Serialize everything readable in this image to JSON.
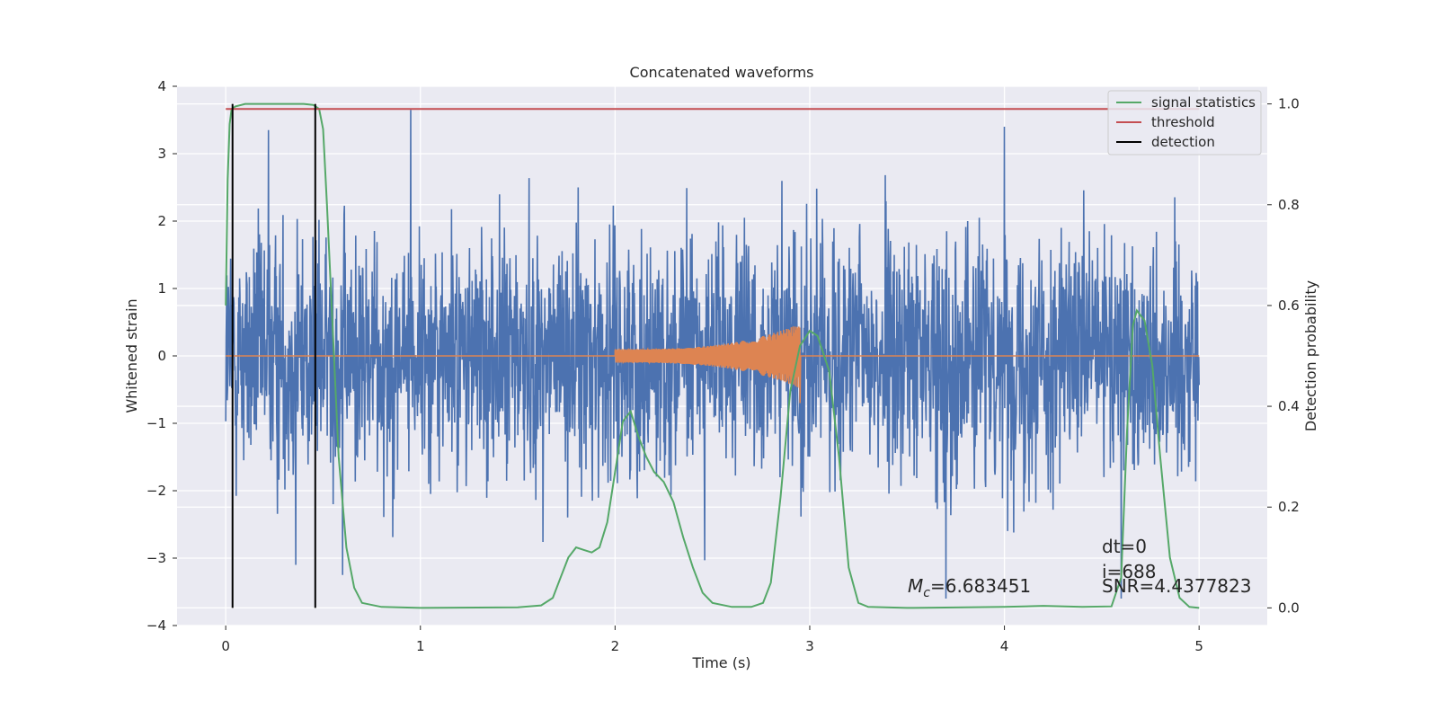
{
  "chart_data": {
    "type": "line",
    "title": "Concatenated waveforms",
    "xlabel": "Time (s)",
    "ylabel": "Whitened strain",
    "y2label": "Detection probability",
    "xlim": [
      -0.25,
      5.35
    ],
    "ylim": [
      -4,
      4
    ],
    "y2lim": [
      -0.035,
      1.035
    ],
    "x_ticks": [
      0,
      1,
      2,
      3,
      4,
      5
    ],
    "y_ticks": [
      -4,
      -3,
      -2,
      -1,
      0,
      1,
      2,
      3,
      4
    ],
    "y2_ticks": [
      0.0,
      0.2,
      0.4,
      0.6,
      0.8,
      1.0
    ],
    "grid": true,
    "legend_position": "top-right",
    "legend": [
      "signal statistics",
      "threshold",
      "detection"
    ],
    "colors": {
      "strain": "#4c72b0",
      "injected": "#dd8452",
      "signal_statistics": "#55a868",
      "threshold": "#c44e52",
      "detection": "#000000",
      "background": "#eaeaf2",
      "grid": "#ffffff"
    },
    "series": [
      {
        "name": "",
        "axis": "left",
        "kind": "noise",
        "x_range": [
          0,
          5
        ],
        "std": 0.9,
        "min": -3.6,
        "max": 3.65,
        "peaks": [
          {
            "x": 0.22,
            "y": 3.35
          },
          {
            "x": 0.95,
            "y": 3.65
          },
          {
            "x": 4.0,
            "y": 3.4
          },
          {
            "x": 3.7,
            "y": -3.6
          },
          {
            "x": 4.6,
            "y": -3.6
          },
          {
            "x": 0.36,
            "y": -3.1
          },
          {
            "x": 0.6,
            "y": -3.25
          }
        ]
      },
      {
        "name": "",
        "axis": "left",
        "kind": "chirp",
        "x_range": [
          2.0,
          2.95
        ],
        "amplitude_start": 0.1,
        "amplitude_end": 0.48
      },
      {
        "name": "signal statistics",
        "axis": "right",
        "points": [
          [
            0.0,
            0.6
          ],
          [
            0.01,
            0.85
          ],
          [
            0.02,
            0.96
          ],
          [
            0.03,
            0.99
          ],
          [
            0.05,
            0.995
          ],
          [
            0.1,
            1.0
          ],
          [
            0.2,
            1.0
          ],
          [
            0.3,
            1.0
          ],
          [
            0.4,
            1.0
          ],
          [
            0.45,
            0.998
          ],
          [
            0.48,
            0.99
          ],
          [
            0.5,
            0.95
          ],
          [
            0.52,
            0.8
          ],
          [
            0.55,
            0.55
          ],
          [
            0.58,
            0.3
          ],
          [
            0.62,
            0.12
          ],
          [
            0.66,
            0.04
          ],
          [
            0.7,
            0.01
          ],
          [
            0.8,
            0.002
          ],
          [
            1.0,
            0.0
          ],
          [
            1.5,
            0.001
          ],
          [
            1.62,
            0.005
          ],
          [
            1.68,
            0.02
          ],
          [
            1.72,
            0.06
          ],
          [
            1.76,
            0.1
          ],
          [
            1.8,
            0.12
          ],
          [
            1.84,
            0.115
          ],
          [
            1.88,
            0.11
          ],
          [
            1.92,
            0.12
          ],
          [
            1.96,
            0.17
          ],
          [
            2.0,
            0.27
          ],
          [
            2.04,
            0.37
          ],
          [
            2.08,
            0.39
          ],
          [
            2.12,
            0.34
          ],
          [
            2.16,
            0.3
          ],
          [
            2.2,
            0.27
          ],
          [
            2.25,
            0.25
          ],
          [
            2.3,
            0.21
          ],
          [
            2.35,
            0.14
          ],
          [
            2.4,
            0.08
          ],
          [
            2.45,
            0.03
          ],
          [
            2.5,
            0.01
          ],
          [
            2.6,
            0.002
          ],
          [
            2.7,
            0.002
          ],
          [
            2.76,
            0.01
          ],
          [
            2.8,
            0.05
          ],
          [
            2.85,
            0.22
          ],
          [
            2.9,
            0.43
          ],
          [
            2.95,
            0.52
          ],
          [
            3.0,
            0.55
          ],
          [
            3.04,
            0.54
          ],
          [
            3.1,
            0.47
          ],
          [
            3.15,
            0.3
          ],
          [
            3.2,
            0.08
          ],
          [
            3.25,
            0.01
          ],
          [
            3.3,
            0.002
          ],
          [
            3.5,
            0.0
          ],
          [
            3.8,
            0.001
          ],
          [
            4.0,
            0.002
          ],
          [
            4.2,
            0.004
          ],
          [
            4.4,
            0.002
          ],
          [
            4.55,
            0.003
          ],
          [
            4.6,
            0.06
          ],
          [
            4.63,
            0.35
          ],
          [
            4.66,
            0.56
          ],
          [
            4.68,
            0.59
          ],
          [
            4.72,
            0.57
          ],
          [
            4.76,
            0.48
          ],
          [
            4.8,
            0.3
          ],
          [
            4.85,
            0.1
          ],
          [
            4.9,
            0.02
          ],
          [
            4.95,
            0.002
          ],
          [
            5.0,
            0.0
          ]
        ]
      },
      {
        "name": "threshold",
        "axis": "right",
        "points": [
          [
            0,
            0.99
          ],
          [
            5,
            0.99
          ]
        ]
      }
    ],
    "detections": [
      0.035,
      0.46
    ],
    "annotations": {
      "mc": "=6.683451",
      "dt": "dt=0",
      "i": "i=688",
      "snr": "SNR=4.4377823"
    }
  }
}
